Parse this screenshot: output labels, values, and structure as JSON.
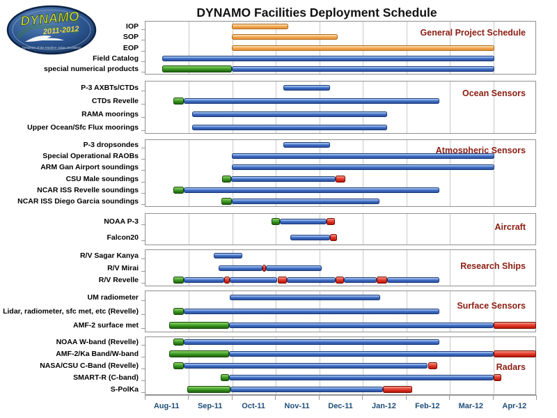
{
  "title": "DYNAMO Facilities Deployment Schedule",
  "logo": {
    "name": "DYNAMO",
    "years": "2011-2012",
    "tagline": "Dynamics of the Madden-Julian Oscillation"
  },
  "chart_data": {
    "type": "bar",
    "subtype": "gantt-timeline",
    "title": "DYNAMO Facilities Deployment Schedule",
    "x_axis": {
      "tick_labels": [
        "Aug-11",
        "Sep-11",
        "Oct-11",
        "Nov-11",
        "Dec-11",
        "Jan-12",
        "Feb-12",
        "Mar-12",
        "Apr-12"
      ],
      "unit": "months-since-Aug-2011",
      "range": [
        0,
        9
      ],
      "grid": true
    },
    "colors": {
      "blue": "#3C68BD",
      "orange": "#F0A147",
      "green": "#2E8317",
      "red": "#D42A1C"
    },
    "sections": [
      {
        "name": "General Project Schedule",
        "rows": [
          {
            "label": "IOP",
            "segments": [
              {
                "color": "orange",
                "start": 2.0,
                "end": 3.3
              }
            ]
          },
          {
            "label": "SOP",
            "segments": [
              {
                "color": "orange",
                "start": 2.0,
                "end": 4.44
              }
            ]
          },
          {
            "label": "EOP",
            "segments": [
              {
                "color": "orange",
                "start": 2.0,
                "end": 8.04
              }
            ]
          },
          {
            "label": "Field Catalog",
            "segments": [
              {
                "color": "blue",
                "start": 0.4,
                "end": 8.04
              }
            ]
          },
          {
            "label": "special numerical products",
            "segments": [
              {
                "color": "green",
                "start": 0.4,
                "end": 2.0
              },
              {
                "color": "blue",
                "start": 2.0,
                "end": 8.04
              }
            ]
          }
        ]
      },
      {
        "name": "Ocean Sensors",
        "rows": [
          {
            "label": "P-3 AXBTs/CTDs",
            "segments": [
              {
                "color": "blue",
                "start": 3.19,
                "end": 4.26
              }
            ]
          },
          {
            "label": "CTDs Revelle",
            "segments": [
              {
                "color": "green",
                "start": 0.65,
                "end": 0.9
              },
              {
                "color": "blue",
                "start": 0.9,
                "end": 6.78
              }
            ]
          },
          {
            "label": "RAMA moorings",
            "segments": [
              {
                "color": "blue",
                "start": 1.09,
                "end": 5.58
              }
            ]
          },
          {
            "label": "Upper Ocean/Sfc Flux moorings",
            "segments": [
              {
                "color": "blue",
                "start": 1.09,
                "end": 5.58
              }
            ]
          }
        ]
      },
      {
        "name": "Atmospheric Sensors",
        "rows": [
          {
            "label": "P-3 dropsondes",
            "segments": [
              {
                "color": "blue",
                "start": 3.19,
                "end": 4.26
              }
            ]
          },
          {
            "label": "Special Operational RAOBs",
            "segments": [
              {
                "color": "blue",
                "start": 2.0,
                "end": 8.04
              }
            ]
          },
          {
            "label": "ARM Gan Airport soundings",
            "segments": [
              {
                "color": "blue",
                "start": 2.0,
                "end": 8.04
              }
            ]
          },
          {
            "label": "CSU Male soundings",
            "segments": [
              {
                "color": "green",
                "start": 1.77,
                "end": 1.98
              },
              {
                "color": "blue",
                "start": 1.98,
                "end": 4.39
              },
              {
                "color": "red",
                "start": 4.39,
                "end": 4.61
              }
            ]
          },
          {
            "label": "NCAR ISS Revelle soundings",
            "segments": [
              {
                "color": "green",
                "start": 0.65,
                "end": 0.9
              },
              {
                "color": "blue",
                "start": 0.9,
                "end": 6.78
              }
            ]
          },
          {
            "label": "NCAR ISS Diego Garcia soundings",
            "segments": [
              {
                "color": "green",
                "start": 1.76,
                "end": 2.0
              },
              {
                "color": "blue",
                "start": 2.0,
                "end": 5.39
              }
            ]
          }
        ]
      },
      {
        "name": "Aircraft",
        "rows": [
          {
            "label": "NOAA P-3",
            "segments": [
              {
                "color": "green",
                "start": 2.92,
                "end": 3.11
              },
              {
                "color": "blue",
                "start": 3.11,
                "end": 4.18
              },
              {
                "color": "red",
                "start": 4.18,
                "end": 4.37
              }
            ]
          },
          {
            "label": "Falcon20",
            "segments": [
              {
                "color": "blue",
                "start": 3.35,
                "end": 4.26
              },
              {
                "color": "red",
                "start": 4.26,
                "end": 4.42
              }
            ]
          }
        ]
      },
      {
        "name": "Research Ships",
        "rows": [
          {
            "label": "R/V Sagar Kanya",
            "segments": [
              {
                "color": "blue",
                "start": 1.58,
                "end": 2.25
              }
            ]
          },
          {
            "label": "R/V Mirai",
            "segments": [
              {
                "color": "blue",
                "start": 1.69,
                "end": 2.71
              },
              {
                "color": "red",
                "start": 2.71,
                "end": 2.78
              },
              {
                "color": "blue",
                "start": 2.78,
                "end": 4.07
              }
            ]
          },
          {
            "label": "R/V Revelle",
            "segments": [
              {
                "color": "green",
                "start": 0.65,
                "end": 0.9
              },
              {
                "color": "blue",
                "start": 0.9,
                "end": 1.82
              },
              {
                "color": "red",
                "start": 1.82,
                "end": 1.96
              },
              {
                "color": "blue",
                "start": 1.96,
                "end": 3.05
              },
              {
                "color": "red",
                "start": 3.05,
                "end": 3.27
              },
              {
                "color": "blue",
                "start": 3.27,
                "end": 4.39
              },
              {
                "color": "red",
                "start": 4.39,
                "end": 4.58
              },
              {
                "color": "blue",
                "start": 4.58,
                "end": 5.33
              },
              {
                "color": "red",
                "start": 5.33,
                "end": 5.57
              },
              {
                "color": "blue",
                "start": 5.57,
                "end": 6.78
              }
            ]
          }
        ]
      },
      {
        "name": "Surface Sensors",
        "rows": [
          {
            "label": "UM radiometer",
            "segments": [
              {
                "color": "blue",
                "start": 1.95,
                "end": 5.42
              }
            ]
          },
          {
            "label": "Lidar, radiometer, sfc met, etc (Revelle)",
            "segments": [
              {
                "color": "green",
                "start": 0.65,
                "end": 0.9
              },
              {
                "color": "blue",
                "start": 0.9,
                "end": 6.78
              }
            ]
          },
          {
            "label": "AMF-2 surface met",
            "segments": [
              {
                "color": "green",
                "start": 0.56,
                "end": 1.93
              },
              {
                "color": "blue",
                "start": 1.93,
                "end": 8.03
              },
              {
                "color": "red",
                "start": 8.03,
                "end": 9.0
              }
            ]
          }
        ]
      },
      {
        "name": "Radars",
        "rows": [
          {
            "label": "NOAA W-band (Revelle)",
            "segments": [
              {
                "color": "green",
                "start": 0.65,
                "end": 0.9
              },
              {
                "color": "blue",
                "start": 0.9,
                "end": 6.78
              }
            ]
          },
          {
            "label": "AMF-2/Ka Band/W-band",
            "segments": [
              {
                "color": "green",
                "start": 0.56,
                "end": 1.93
              },
              {
                "color": "blue",
                "start": 1.93,
                "end": 8.03
              },
              {
                "color": "red",
                "start": 8.03,
                "end": 9.0
              }
            ]
          },
          {
            "label": "NASA/CSU C-Band (Revelle)",
            "segments": [
              {
                "color": "green",
                "start": 0.65,
                "end": 0.9
              },
              {
                "color": "blue",
                "start": 0.9,
                "end": 6.51
              },
              {
                "color": "red",
                "start": 6.51,
                "end": 6.73
              }
            ]
          },
          {
            "label": "SMART-R (C-band)",
            "segments": [
              {
                "color": "green",
                "start": 1.74,
                "end": 1.93
              },
              {
                "color": "blue",
                "start": 1.93,
                "end": 8.03
              },
              {
                "color": "red",
                "start": 8.03,
                "end": 8.2
              }
            ]
          },
          {
            "label": "S-PolKa",
            "segments": [
              {
                "color": "green",
                "start": 0.97,
                "end": 1.97
              },
              {
                "color": "blue",
                "start": 1.97,
                "end": 5.47
              },
              {
                "color": "red",
                "start": 5.47,
                "end": 6.15
              }
            ]
          }
        ]
      }
    ]
  }
}
